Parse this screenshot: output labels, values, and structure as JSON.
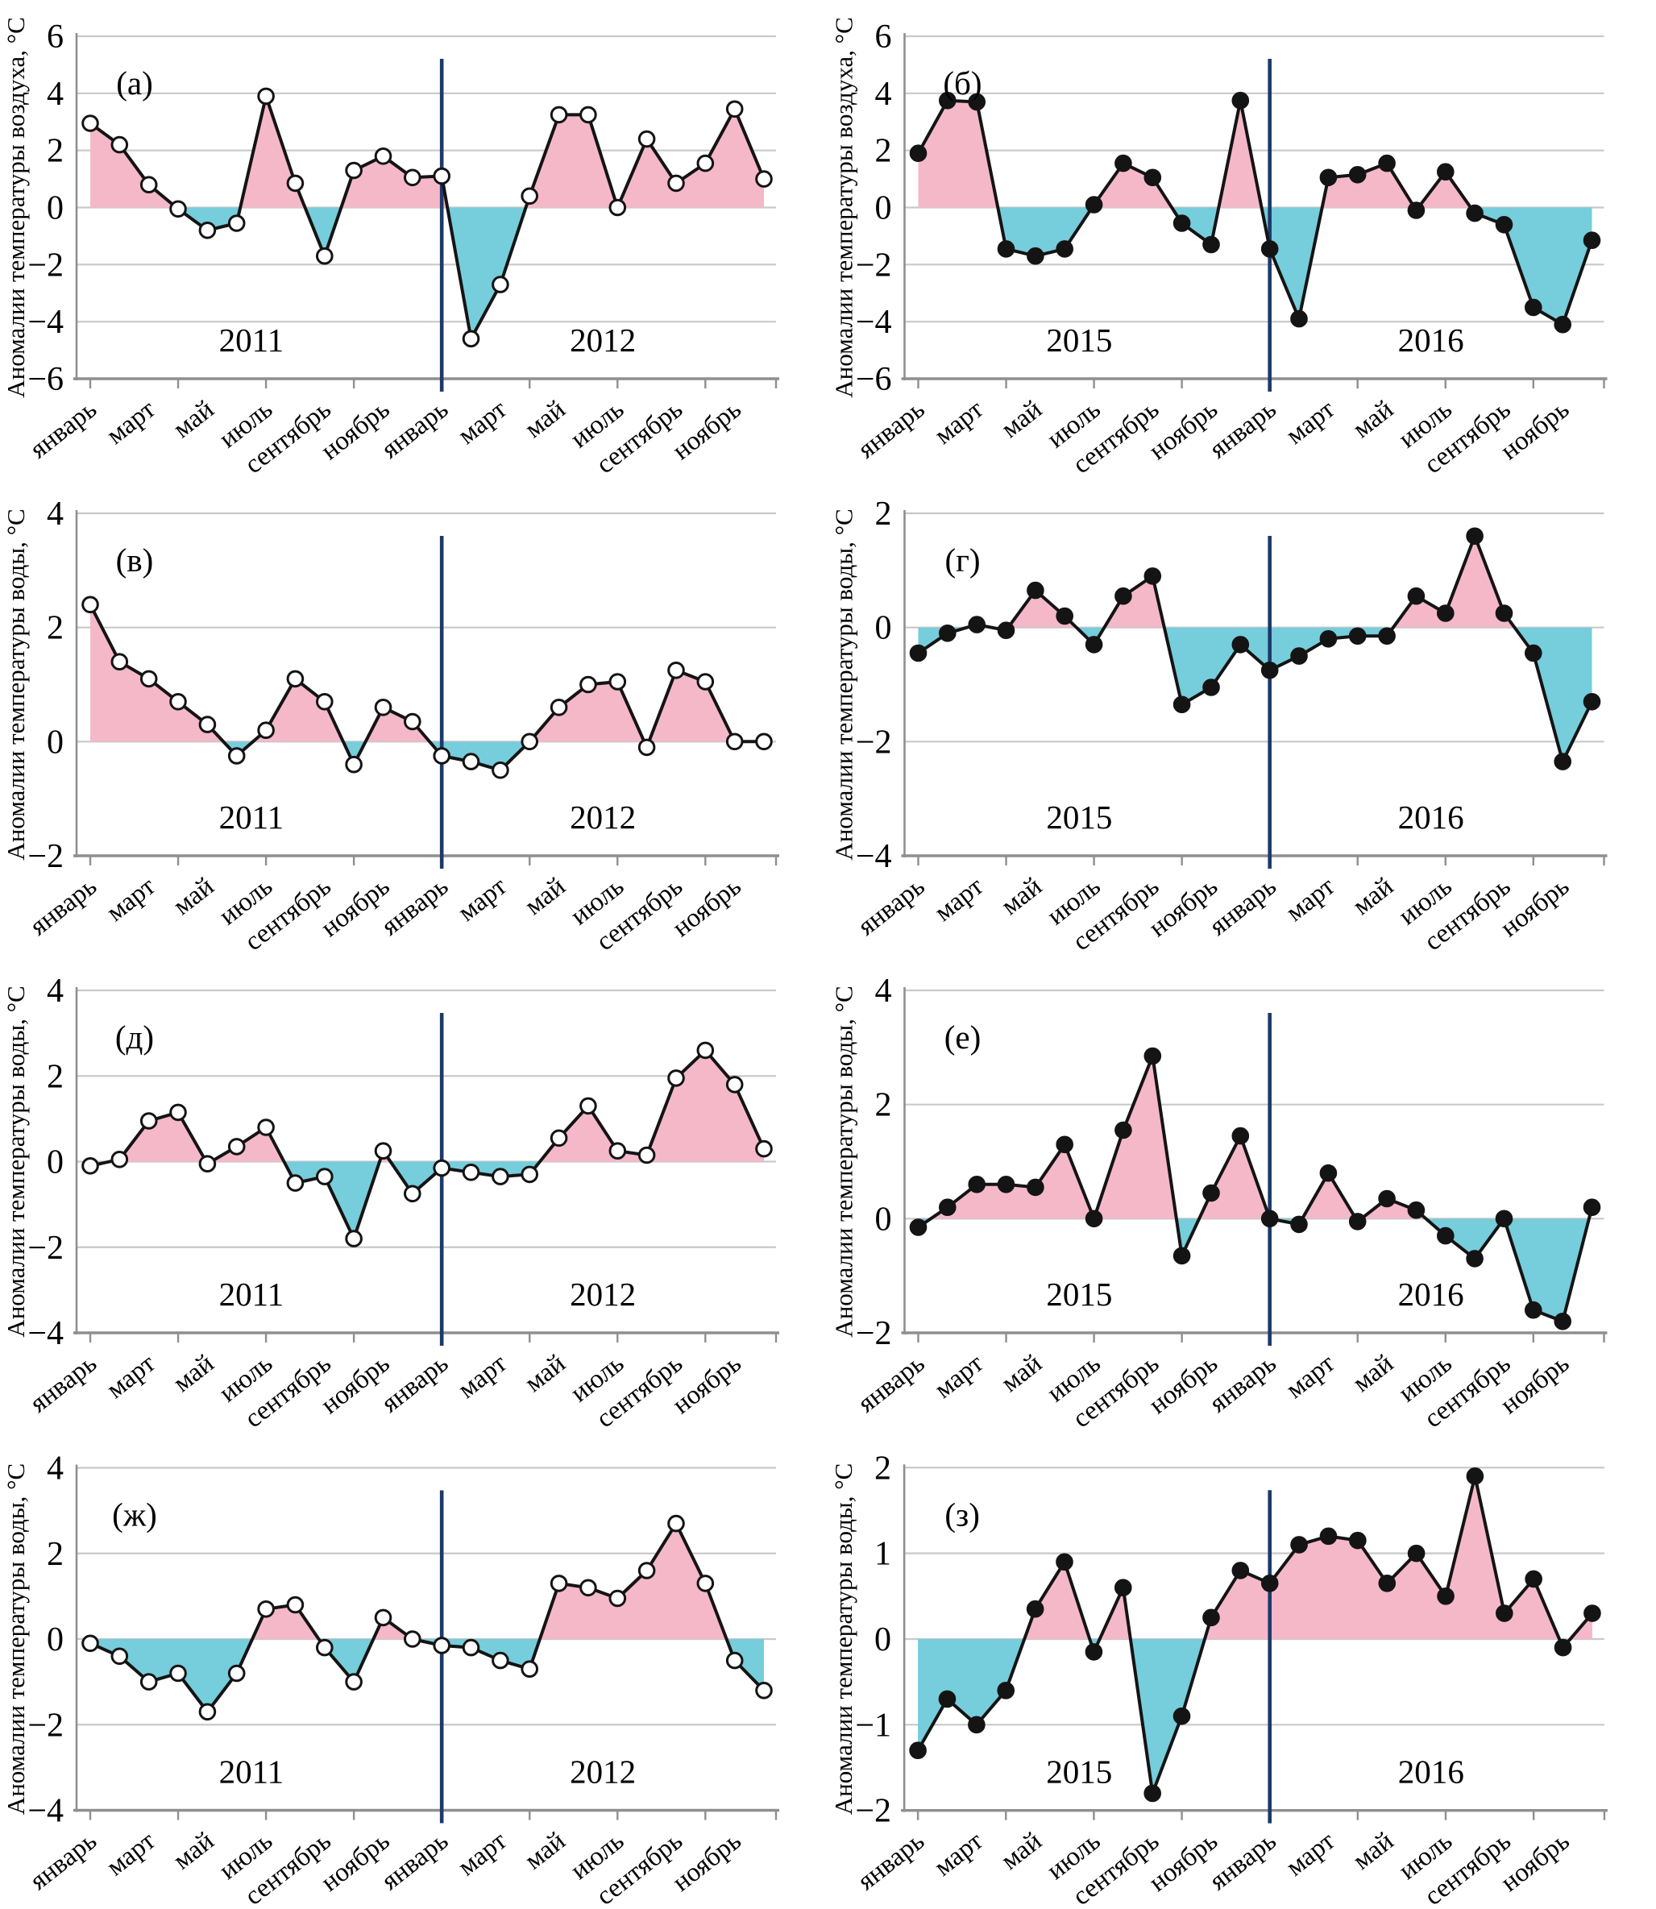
{
  "figure": {
    "language": "ru",
    "months_labels": [
      "январь",
      "март",
      "май",
      "июль",
      "сентябрь",
      "ноябрь"
    ],
    "ylabel_air": "Аномалии температуры воздуха, °С",
    "ylabel_water": "Аномалии температуры воды, °С"
  },
  "colors": {
    "positive_fill": "#F5B8C8",
    "negative_fill": "#76CDDB",
    "line": "#141414",
    "marker_stroke": "#141414",
    "marker_open_fill": "#FFFFFF",
    "marker_solid_fill": "#141414",
    "divider": "#1C3A6B",
    "grid": "#C9C9C9",
    "axis": "#8F8F8F",
    "text": "#000000"
  },
  "chart_data": [
    {
      "type": "line",
      "panel": "(а)",
      "ylabel": "Аномалии температуры воздуха, °С",
      "ylim": [
        -6,
        6
      ],
      "yticks": [
        6,
        4,
        2,
        0,
        -2,
        -4,
        -6
      ],
      "marker": "open",
      "grid": true,
      "years": [
        {
          "label": "2011",
          "values": [
            2.95,
            2.2,
            0.8,
            -0.05,
            -0.8,
            -0.55,
            3.9,
            0.85,
            -1.7,
            1.3,
            1.8,
            1.05
          ]
        },
        {
          "label": "2012",
          "values": [
            1.1,
            -4.6,
            -2.7,
            0.4,
            3.25,
            3.25,
            0.0,
            2.4,
            0.85,
            1.55,
            3.45,
            1.0
          ]
        }
      ]
    },
    {
      "type": "line",
      "panel": "(б)",
      "ylabel": "Аномалии температуры воздуха, °С",
      "ylim": [
        -6,
        6
      ],
      "yticks": [
        6,
        4,
        2,
        0,
        -2,
        -4,
        -6
      ],
      "marker": "solid",
      "grid": true,
      "years": [
        {
          "label": "2015",
          "values": [
            1.9,
            3.75,
            3.7,
            -1.45,
            -1.7,
            -1.45,
            0.1,
            1.55,
            1.05,
            -0.55,
            -1.3,
            3.75
          ]
        },
        {
          "label": "2016",
          "values": [
            -1.45,
            -3.9,
            1.05,
            1.15,
            1.55,
            -0.1,
            1.25,
            -0.2,
            -0.6,
            -3.5,
            -4.1,
            -1.15
          ]
        }
      ]
    },
    {
      "type": "line",
      "panel": "(в)",
      "ylabel": "Аномалии температуры воды, °С",
      "ylim": [
        -2,
        4
      ],
      "yticks": [
        4,
        2,
        0,
        -2
      ],
      "marker": "open",
      "grid": true,
      "years": [
        {
          "label": "2011",
          "values": [
            2.4,
            1.4,
            1.1,
            0.7,
            0.3,
            -0.25,
            0.2,
            1.1,
            0.7,
            -0.4,
            0.6,
            0.35
          ]
        },
        {
          "label": "2012",
          "values": [
            -0.25,
            -0.35,
            -0.5,
            0.0,
            0.6,
            1.0,
            1.05,
            -0.1,
            1.25,
            1.05,
            0.0,
            0.0
          ]
        }
      ]
    },
    {
      "type": "line",
      "panel": "(г)",
      "ylabel": "Аномалии температуры воды, °С",
      "ylim": [
        -4,
        2
      ],
      "yticks": [
        2,
        0,
        -2,
        -4
      ],
      "marker": "solid",
      "grid": true,
      "years": [
        {
          "label": "2015",
          "values": [
            -0.45,
            -0.1,
            0.05,
            -0.05,
            0.65,
            0.2,
            -0.3,
            0.55,
            0.9,
            -1.35,
            -1.05,
            -0.3
          ]
        },
        {
          "label": "2016",
          "values": [
            -0.75,
            -0.5,
            -0.2,
            -0.15,
            -0.15,
            0.55,
            0.25,
            1.6,
            0.25,
            -0.45,
            -2.35,
            -1.3
          ]
        }
      ]
    },
    {
      "type": "line",
      "panel": "(д)",
      "ylabel": "Аномалии температуры воды, °С",
      "ylim": [
        -4,
        4
      ],
      "yticks": [
        4,
        2,
        0,
        -2,
        -4
      ],
      "marker": "open",
      "grid": true,
      "years": [
        {
          "label": "2011",
          "values": [
            -0.1,
            0.05,
            0.95,
            1.15,
            -0.05,
            0.35,
            0.8,
            -0.5,
            -0.35,
            -1.8,
            0.25,
            -0.75
          ]
        },
        {
          "label": "2012",
          "values": [
            -0.15,
            -0.25,
            -0.35,
            -0.3,
            0.55,
            1.3,
            0.25,
            0.15,
            1.95,
            2.6,
            1.8,
            0.3
          ]
        }
      ]
    },
    {
      "type": "line",
      "panel": "(е)",
      "ylabel": "Аномалии температуры воды, °С",
      "ylim": [
        -2,
        4
      ],
      "yticks": [
        4,
        2,
        0,
        -2
      ],
      "marker": "solid",
      "grid": true,
      "years": [
        {
          "label": "2015",
          "values": [
            -0.15,
            0.2,
            0.6,
            0.6,
            0.55,
            1.3,
            0.0,
            1.55,
            2.85,
            -0.65,
            0.45,
            1.45
          ]
        },
        {
          "label": "2016",
          "values": [
            0.0,
            -0.1,
            0.8,
            -0.05,
            0.35,
            0.15,
            -0.3,
            -0.7,
            0.0,
            -1.6,
            -1.8,
            0.2
          ]
        }
      ]
    },
    {
      "type": "line",
      "panel": "(ж)",
      "ylabel": "Аномалии температуры воды, °С",
      "ylim": [
        -4,
        4
      ],
      "yticks": [
        4,
        2,
        0,
        -2,
        -4
      ],
      "marker": "open",
      "grid": true,
      "years": [
        {
          "label": "2011",
          "values": [
            -0.1,
            -0.4,
            -1.0,
            -0.8,
            -1.7,
            -0.8,
            0.7,
            0.8,
            -0.2,
            -1.0,
            0.5,
            0.0
          ]
        },
        {
          "label": "2012",
          "values": [
            -0.15,
            -0.2,
            -0.5,
            -0.7,
            1.3,
            1.2,
            0.95,
            1.6,
            2.7,
            1.3,
            -0.5,
            -1.2
          ]
        }
      ]
    },
    {
      "type": "line",
      "panel": "(з)",
      "ylabel": "Аномалии температуры воды, °С",
      "ylim": [
        -2,
        2
      ],
      "yticks": [
        2,
        1,
        0,
        -1,
        -2
      ],
      "marker": "solid",
      "grid": true,
      "years": [
        {
          "label": "2015",
          "values": [
            -1.3,
            -0.7,
            -1.0,
            -0.6,
            0.35,
            0.9,
            -0.15,
            0.6,
            -1.8,
            -0.9,
            0.25,
            0.8
          ]
        },
        {
          "label": "2016",
          "values": [
            0.65,
            1.1,
            1.2,
            1.15,
            0.65,
            1.0,
            0.5,
            1.9,
            0.3,
            0.7,
            -0.1,
            0.3
          ]
        }
      ]
    }
  ]
}
